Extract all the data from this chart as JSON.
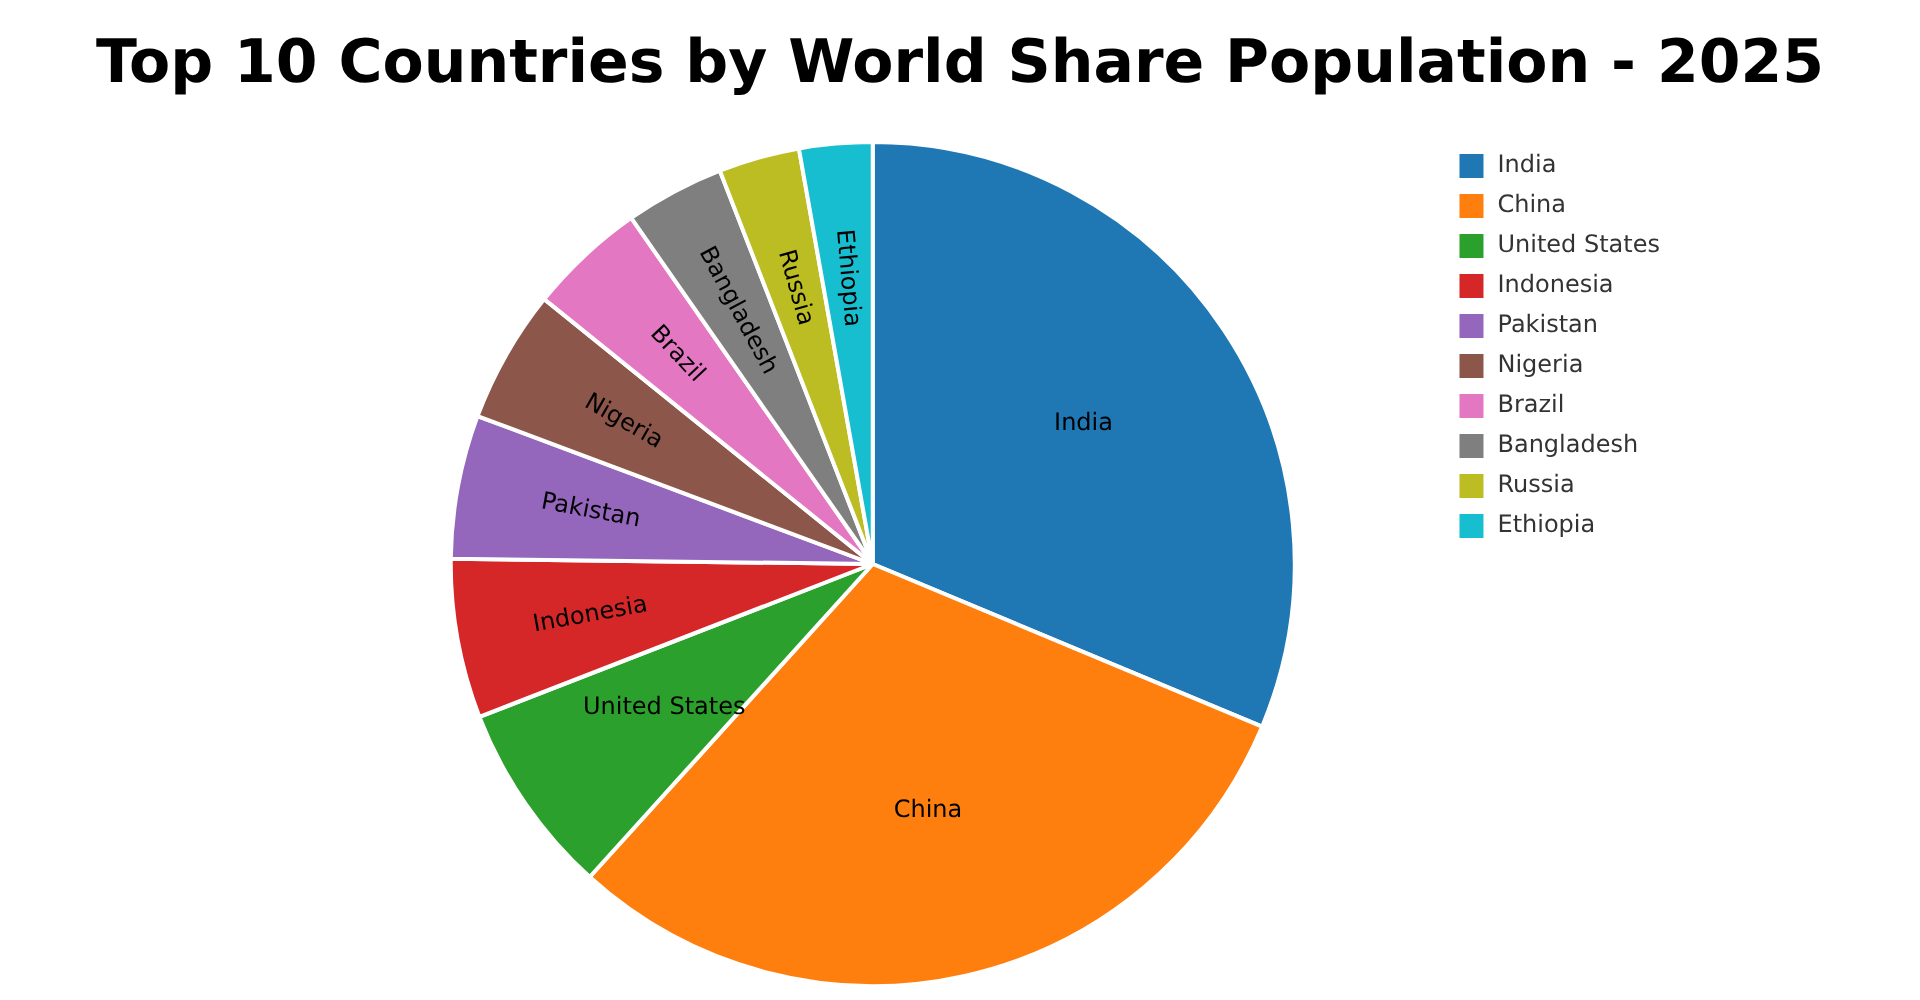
{
  "chart_data": {
    "type": "pie",
    "title": "Top 10 Countries by World Share Population - 2025",
    "categories": [
      "India",
      "China",
      "United States",
      "Indonesia",
      "Pakistan",
      "Nigeria",
      "Brazil",
      "Bangladesh",
      "Russia",
      "Ethiopia"
    ],
    "values": [
      31.3,
      30.4,
      7.4,
      6.1,
      5.5,
      5.1,
      4.5,
      3.8,
      3.1,
      2.8
    ],
    "colors": [
      "#1f77b4",
      "#ff7f0e",
      "#2ca02c",
      "#d62728",
      "#9467bd",
      "#8c564b",
      "#e377c2",
      "#7f7f7f",
      "#bcbd22",
      "#17becf"
    ],
    "legend": "top right"
  }
}
